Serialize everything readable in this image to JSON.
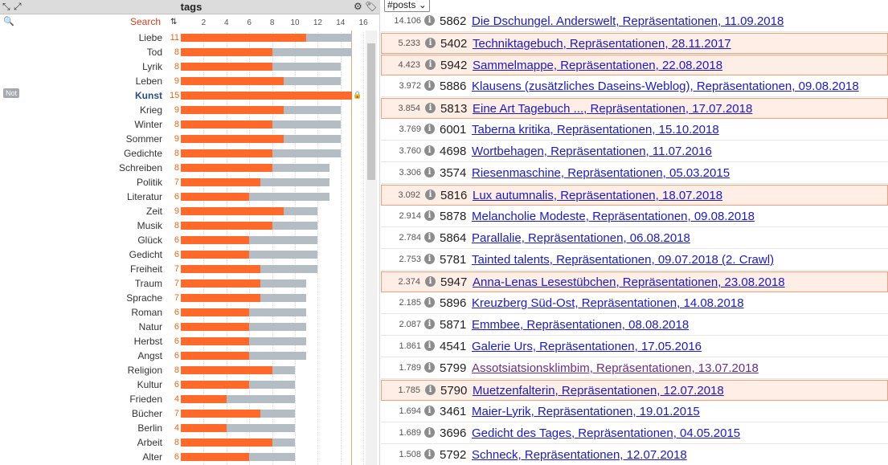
{
  "tags_panel": {
    "title": "tags",
    "search_label": "Search",
    "not_badge": "Not",
    "icons": [
      "collapse-icon",
      "expand-icon",
      "gear-icon",
      "tags-icon",
      "sort-icon",
      "search-icon",
      "lock-icon"
    ],
    "axis_ticks": [
      "2",
      "4",
      "6",
      "8",
      "10",
      "12",
      "14",
      "16"
    ],
    "tags": [
      {
        "name": "Liebe",
        "count": "11",
        "orange": 11,
        "total": 15
      },
      {
        "name": "Tod",
        "count": "8",
        "orange": 8,
        "total": 15
      },
      {
        "name": "Lyrik",
        "count": "8",
        "orange": 8,
        "total": 14
      },
      {
        "name": "Leben",
        "count": "9",
        "orange": 9,
        "total": 14
      },
      {
        "name": "Kunst",
        "count": "15",
        "orange": 15,
        "total": 15,
        "selected": true
      },
      {
        "name": "Krieg",
        "count": "9",
        "orange": 9,
        "total": 14
      },
      {
        "name": "Winter",
        "count": "8",
        "orange": 8,
        "total": 14
      },
      {
        "name": "Sommer",
        "count": "9",
        "orange": 9,
        "total": 14
      },
      {
        "name": "Gedichte",
        "count": "8",
        "orange": 8,
        "total": 14
      },
      {
        "name": "Schreiben",
        "count": "8",
        "orange": 8,
        "total": 13
      },
      {
        "name": "Politik",
        "count": "7",
        "orange": 7,
        "total": 13
      },
      {
        "name": "Literatur",
        "count": "6",
        "orange": 6,
        "total": 13
      },
      {
        "name": "Zeit",
        "count": "9",
        "orange": 9,
        "total": 12
      },
      {
        "name": "Musik",
        "count": "8",
        "orange": 8,
        "total": 12
      },
      {
        "name": "Glück",
        "count": "6",
        "orange": 6,
        "total": 12
      },
      {
        "name": "Gedicht",
        "count": "6",
        "orange": 6,
        "total": 12
      },
      {
        "name": "Freiheit",
        "count": "7",
        "orange": 7,
        "total": 12
      },
      {
        "name": "Traum",
        "count": "7",
        "orange": 7,
        "total": 11
      },
      {
        "name": "Sprache",
        "count": "7",
        "orange": 7,
        "total": 11
      },
      {
        "name": "Roman",
        "count": "6",
        "orange": 6,
        "total": 11
      },
      {
        "name": "Natur",
        "count": "6",
        "orange": 6,
        "total": 11
      },
      {
        "name": "Herbst",
        "count": "6",
        "orange": 6,
        "total": 11
      },
      {
        "name": "Angst",
        "count": "6",
        "orange": 6,
        "total": 11
      },
      {
        "name": "Religion",
        "count": "8",
        "orange": 8,
        "total": 10
      },
      {
        "name": "Kultur",
        "count": "6",
        "orange": 6,
        "total": 10
      },
      {
        "name": "Frieden",
        "count": "4",
        "orange": 4,
        "total": 10
      },
      {
        "name": "Bücher",
        "count": "7",
        "orange": 7,
        "total": 10
      },
      {
        "name": "Berlin",
        "count": "4",
        "orange": 4,
        "total": 10
      },
      {
        "name": "Arbeit",
        "count": "8",
        "orange": 8,
        "total": 10
      },
      {
        "name": "Alter",
        "count": "6",
        "orange": 6,
        "total": 10
      }
    ]
  },
  "posts_panel": {
    "selector_value": "#posts",
    "info_glyph": "i",
    "posts": [
      {
        "score": "14.106",
        "id": "5862",
        "title": "Die Dschungel. Anderswelt, Repräsentationen, 11.09.2018",
        "highlighted": false,
        "visited": false
      },
      {
        "score": "5.233",
        "id": "5402",
        "title": "Techniktagebuch, Repräsentationen, 28.11.2017",
        "highlighted": true,
        "visited": false
      },
      {
        "score": "4.423",
        "id": "5942",
        "title": "Sammelmappe, Repräsentationen, 22.08.2018",
        "highlighted": true,
        "visited": false
      },
      {
        "score": "3.972",
        "id": "5886",
        "title": "Klausens (zusätzliches Daseins-Weblog), Repräsentationen, 09.08.2018",
        "highlighted": false,
        "visited": false
      },
      {
        "score": "3.854",
        "id": "5813",
        "title": "Eine Art Tagebuch ..., Repräsentationen, 17.07.2018",
        "highlighted": true,
        "visited": false
      },
      {
        "score": "3.769",
        "id": "6001",
        "title": "Taberna kritika, Repräsentationen, 15.10.2018",
        "highlighted": false,
        "visited": false
      },
      {
        "score": "3.760",
        "id": "4698",
        "title": "Wortbehagen, Repräsentationen, 11.07.2016",
        "highlighted": false,
        "visited": false
      },
      {
        "score": "3.306",
        "id": "3574",
        "title": "Riesenmaschine, Repräsentationen, 05.03.2015",
        "highlighted": false,
        "visited": false
      },
      {
        "score": "3.092",
        "id": "5816",
        "title": "Lux autumnalis, Repräsentationen, 18.07.2018",
        "highlighted": true,
        "visited": false
      },
      {
        "score": "2.914",
        "id": "5878",
        "title": "Melancholie Modeste, Repräsentationen, 09.08.2018",
        "highlighted": false,
        "visited": false
      },
      {
        "score": "2.784",
        "id": "5864",
        "title": "Parallalie, Repräsentationen, 06.08.2018",
        "highlighted": false,
        "visited": false
      },
      {
        "score": "2.753",
        "id": "5781",
        "title": "Tainted talents, Repräsentationen, 09.07.2018 (2. Crawl)",
        "highlighted": false,
        "visited": false
      },
      {
        "score": "2.374",
        "id": "5947",
        "title": "Anna-Lenas Lesestübchen, Repräsentationen, 23.08.2018",
        "highlighted": true,
        "visited": false
      },
      {
        "score": "2.185",
        "id": "5896",
        "title": "Kreuzberg Süd-Ost, Repräsentationen, 14.08.2018",
        "highlighted": false,
        "visited": false
      },
      {
        "score": "2.087",
        "id": "5871",
        "title": "Emmbee, Repräsentationen, 08.08.2018",
        "highlighted": false,
        "visited": false
      },
      {
        "score": "1.861",
        "id": "4541",
        "title": "Galerie Urs, Repräsentationen, 17.05.2016",
        "highlighted": false,
        "visited": false
      },
      {
        "score": "1.789",
        "id": "5799",
        "title": "Assotsiatsionsklimbim, Repräsentationen, 13.07.2018",
        "highlighted": false,
        "visited": true
      },
      {
        "score": "1.785",
        "id": "5790",
        "title": "Muetzenfalterin, Repräsentationen, 12.07.2018",
        "highlighted": true,
        "visited": false
      },
      {
        "score": "1.694",
        "id": "3461",
        "title": "Maier-Lyrik, Repräsentationen, 19.01.2015",
        "highlighted": false,
        "visited": false
      },
      {
        "score": "1.689",
        "id": "3696",
        "title": "Gedicht des Tages, Repräsentationen, 04.05.2015",
        "highlighted": false,
        "visited": false
      },
      {
        "score": "1.508",
        "id": "5792",
        "title": "Schneck, Repräsentationen, 12.07.2018",
        "highlighted": false,
        "visited": false
      }
    ]
  },
  "colors": {
    "bar_selected": "#ff6a2a",
    "bar_total": "#b4bdc4",
    "highlight_bg": "#feeee6",
    "link": "#1a1acc",
    "visited_link": "#6e2a8e"
  }
}
